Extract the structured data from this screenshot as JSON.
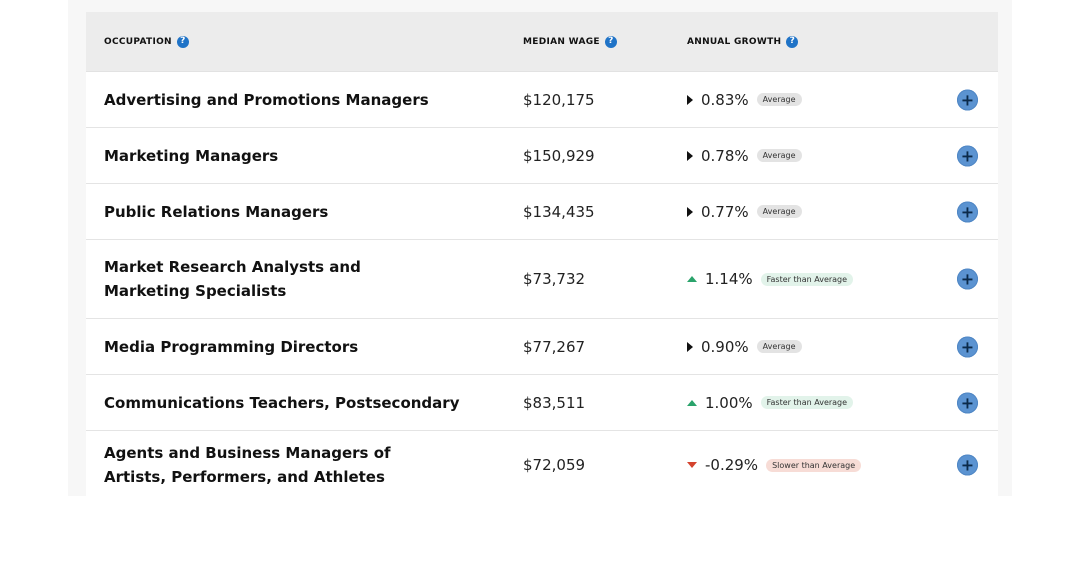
{
  "header": {
    "occupation": "OCCUPATION",
    "median_wage": "MEDIAN WAGE",
    "annual_growth": "ANNUAL GROWTH",
    "help_glyph": "?"
  },
  "rows": [
    {
      "occupation": "Advertising and Promotions Managers",
      "wage": "$120,175",
      "growth": "0.83%",
      "trend": "neutral",
      "badge": "Average"
    },
    {
      "occupation": "Marketing Managers",
      "wage": "$150,929",
      "growth": "0.78%",
      "trend": "neutral",
      "badge": "Average"
    },
    {
      "occupation": "Public Relations Managers",
      "wage": "$134,435",
      "growth": "0.77%",
      "trend": "neutral",
      "badge": "Average"
    },
    {
      "occupation": "Market Research Analysts and Marketing Specialists",
      "wage": "$73,732",
      "growth": "1.14%",
      "trend": "up",
      "badge": "Faster than Average"
    },
    {
      "occupation": "Media Programming Directors",
      "wage": "$77,267",
      "growth": "0.90%",
      "trend": "neutral",
      "badge": "Average"
    },
    {
      "occupation": "Communications Teachers, Postsecondary",
      "wage": "$83,511",
      "growth": "1.00%",
      "trend": "up",
      "badge": "Faster than Average"
    },
    {
      "occupation": "Agents and Business Managers of Artists, Performers, and Athletes",
      "wage": "$72,059",
      "growth": "-0.29%",
      "trend": "down",
      "badge": "Slower than Average"
    }
  ],
  "expand_glyph": "+",
  "colors": {
    "accent": "#1f73c7",
    "up": "#2aa36b",
    "down": "#d4432e",
    "expand_button": "#5b93d1"
  }
}
